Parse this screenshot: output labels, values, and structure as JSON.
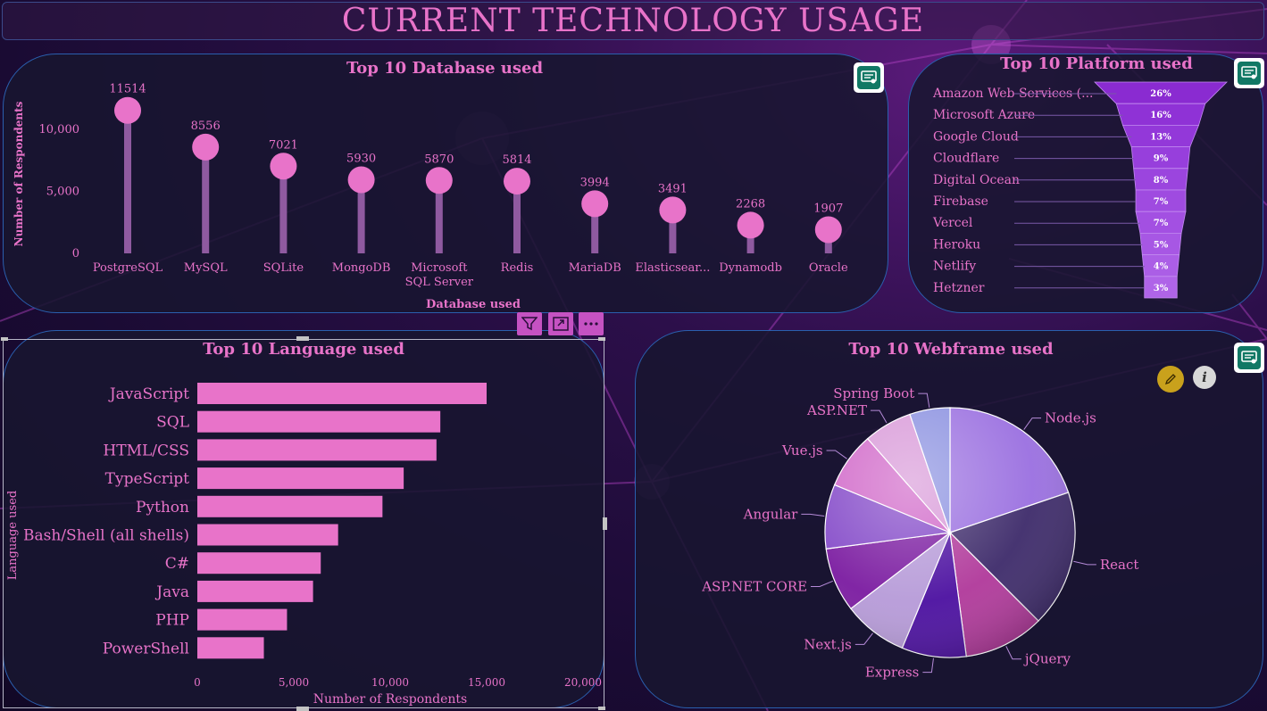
{
  "page": {
    "title": "CURRENT TECHNOLOGY USAGE",
    "colors": {
      "accent": "#e873c9",
      "panel_border": "#2a5fae",
      "panel_bg": "#181630",
      "chip": "#117865"
    }
  },
  "toolbar": {
    "filter_icon": "filter-icon",
    "focus_icon": "focus-mode-icon",
    "more_icon": "more-options-icon"
  },
  "chart_data": [
    {
      "type": "lollipop",
      "title": "Top 10 Database used",
      "xlabel": "Database used",
      "ylabel": "Number of Respondents",
      "categories": [
        "PostgreSQL",
        "MySQL",
        "SQLite",
        "MongoDB",
        "Microsoft SQL Server",
        "Redis",
        "MariaDB",
        "Elasticsear...",
        "Dynamodb",
        "Oracle"
      ],
      "category_lines": [
        [
          "PostgreSQL"
        ],
        [
          "MySQL"
        ],
        [
          "SQLite"
        ],
        [
          "MongoDB"
        ],
        [
          "Microsoft",
          "SQL Server"
        ],
        [
          "Redis"
        ],
        [
          "MariaDB"
        ],
        [
          "Elasticsear..."
        ],
        [
          "Dynamodb"
        ],
        [
          "Oracle"
        ]
      ],
      "values": [
        11514,
        8556,
        7021,
        5930,
        5870,
        5814,
        3994,
        3491,
        2268,
        1907
      ],
      "yticks": [
        0,
        5000,
        10000
      ],
      "ytick_labels": [
        "0",
        "5,000",
        "10,000"
      ],
      "ylim": [
        0,
        12500
      ],
      "grid": false,
      "color": "#e873c9"
    },
    {
      "type": "funnel",
      "title": "Top 10 Platform used",
      "categories": [
        "Amazon Web Services (...",
        "Microsoft Azure",
        "Google Cloud",
        "Cloudflare",
        "Digital Ocean",
        "Firebase",
        "Vercel",
        "Heroku",
        "Netlify",
        "Hetzner"
      ],
      "values": [
        26,
        16,
        13,
        9,
        8,
        7,
        7,
        5,
        4,
        3
      ],
      "value_labels": [
        "26%",
        "16%",
        "13%",
        "9%",
        "8%",
        "7%",
        "7%",
        "5%",
        "4%",
        "3%"
      ],
      "colors": [
        "#8a2bd1",
        "#8f32d6",
        "#9338d9",
        "#973fdc",
        "#9b45de",
        "#9f4be0",
        "#a350e2",
        "#a757e4",
        "#ab5ee6",
        "#af64e8"
      ]
    },
    {
      "type": "bar",
      "orientation": "horizontal",
      "title": "Top 10 Language used",
      "xlabel": "Number of Respondents",
      "ylabel": "Language used",
      "categories": [
        "JavaScript",
        "SQL",
        "HTML/CSS",
        "TypeScript",
        "Python",
        "Bash/Shell (all shells)",
        "C#",
        "Java",
        "PHP",
        "PowerShell"
      ],
      "values": [
        15000,
        12600,
        12400,
        10700,
        9600,
        7300,
        6400,
        6000,
        4650,
        3450
      ],
      "xticks": [
        0,
        5000,
        10000,
        15000,
        20000
      ],
      "xtick_labels": [
        "0",
        "5,000",
        "10,000",
        "15,000",
        "20,000"
      ],
      "xlim": [
        0,
        20000
      ],
      "grid": false,
      "color": "#e873c9"
    },
    {
      "type": "pie",
      "title": "Top 10 Webframe used",
      "labels": [
        "Node.js",
        "React",
        "jQuery",
        "Express",
        "Next.js",
        "ASP.NET CORE",
        "Angular",
        "Vue.js",
        "ASP.NET",
        "Spring Boot"
      ],
      "values": [
        19,
        17,
        10,
        8,
        8,
        8,
        8,
        7,
        6,
        5
      ],
      "colors": [
        "#9a6fe0",
        "#3d2a6a",
        "#b0389a",
        "#4b0fa0",
        "#b69ad8",
        "#7a1aa0",
        "#8348c8",
        "#d066c8",
        "#d898d8",
        "#8a90e0"
      ],
      "legend": "labels-outside"
    }
  ]
}
